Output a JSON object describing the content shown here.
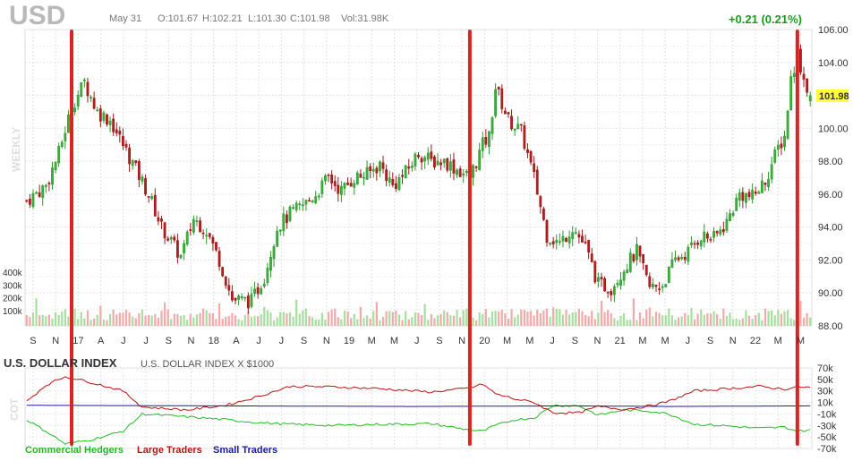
{
  "header": {
    "ticker": "USD",
    "date": "May 31",
    "open": "O:101.67",
    "high": "H:102.21",
    "low": "L:101.30",
    "close": "C:101.98",
    "volume": "Vol:31.98K",
    "change": "+0.21 (0.21%)",
    "last_price": "101.98"
  },
  "chart_data": [
    {
      "type": "candlestick",
      "side_label": "WEEKLY",
      "y_ticks": [
        "106.00",
        "104.00",
        "102.00",
        "100.00",
        "98.00",
        "96.00",
        "94.00",
        "92.00",
        "90.00",
        "88.00"
      ],
      "ylim": [
        88,
        106
      ],
      "x_ticks": [
        "S",
        "N",
        "17",
        "A",
        "J",
        "J",
        "S",
        "N",
        "18",
        "A",
        "J",
        "J",
        "S",
        "N",
        "19",
        "M",
        "M",
        "J",
        "S",
        "N",
        "20",
        "M",
        "M",
        "J",
        "S",
        "N",
        "21",
        "M",
        "M",
        "J",
        "S",
        "N",
        "22",
        "M",
        "M"
      ],
      "volume_ticks": [
        "400k",
        "300k",
        "200k",
        "100k"
      ],
      "anchors": [
        {
          "week": 0,
          "close": 95.6
        },
        {
          "week": 6,
          "close": 96.5
        },
        {
          "week": 10,
          "close": 98.5
        },
        {
          "week": 14,
          "close": 101.3
        },
        {
          "week": 18,
          "close": 102.8
        },
        {
          "week": 22,
          "close": 101.0
        },
        {
          "week": 26,
          "close": 100.5
        },
        {
          "week": 30,
          "close": 99.0
        },
        {
          "week": 34,
          "close": 97.5
        },
        {
          "week": 38,
          "close": 96.0
        },
        {
          "week": 42,
          "close": 94.0
        },
        {
          "week": 48,
          "close": 92.2
        },
        {
          "week": 52,
          "close": 94.5
        },
        {
          "week": 56,
          "close": 93.8
        },
        {
          "week": 60,
          "close": 92.0
        },
        {
          "week": 64,
          "close": 89.6
        },
        {
          "week": 70,
          "close": 89.5
        },
        {
          "week": 74,
          "close": 91.0
        },
        {
          "week": 78,
          "close": 94.0
        },
        {
          "week": 82,
          "close": 94.8
        },
        {
          "week": 86,
          "close": 95.3
        },
        {
          "week": 90,
          "close": 96.0
        },
        {
          "week": 94,
          "close": 97.0
        },
        {
          "week": 98,
          "close": 96.2
        },
        {
          "week": 102,
          "close": 97.0
        },
        {
          "week": 106,
          "close": 97.2
        },
        {
          "week": 110,
          "close": 97.8
        },
        {
          "week": 114,
          "close": 96.5
        },
        {
          "week": 118,
          "close": 97.3
        },
        {
          "week": 122,
          "close": 98.5
        },
        {
          "week": 126,
          "close": 98.0
        },
        {
          "week": 130,
          "close": 98.0
        },
        {
          "week": 134,
          "close": 97.5
        },
        {
          "week": 138,
          "close": 97.0
        },
        {
          "week": 142,
          "close": 99.0
        },
        {
          "week": 144,
          "close": 99.5
        },
        {
          "week": 146,
          "close": 102.5
        },
        {
          "week": 150,
          "close": 100.5
        },
        {
          "week": 154,
          "close": 99.8
        },
        {
          "week": 158,
          "close": 97.0
        },
        {
          "week": 162,
          "close": 93.5
        },
        {
          "week": 166,
          "close": 93.0
        },
        {
          "week": 170,
          "close": 94.0
        },
        {
          "week": 174,
          "close": 92.8
        },
        {
          "week": 178,
          "close": 90.5
        },
        {
          "week": 182,
          "close": 90.3
        },
        {
          "week": 186,
          "close": 91.5
        },
        {
          "week": 190,
          "close": 92.5
        },
        {
          "week": 194,
          "close": 90.3
        },
        {
          "week": 198,
          "close": 90.5
        },
        {
          "week": 202,
          "close": 92.0
        },
        {
          "week": 206,
          "close": 92.5
        },
        {
          "week": 210,
          "close": 93.5
        },
        {
          "week": 214,
          "close": 93.3
        },
        {
          "week": 218,
          "close": 94.3
        },
        {
          "week": 222,
          "close": 96.0
        },
        {
          "week": 226,
          "close": 95.8
        },
        {
          "week": 230,
          "close": 96.8
        },
        {
          "week": 234,
          "close": 98.8
        },
        {
          "week": 236,
          "close": 99.5
        },
        {
          "week": 238,
          "close": 103.0
        },
        {
          "week": 240,
          "close": 104.5
        },
        {
          "week": 242,
          "close": 103.0
        },
        {
          "week": 244,
          "close": 101.98
        }
      ]
    },
    {
      "type": "line",
      "title": "U.S. DOLLAR INDEX",
      "subtitle": "U.S. DOLLAR INDEX X $1000",
      "side_label": "COT",
      "y_ticks": [
        "70k",
        "50k",
        "30k",
        "10k",
        "-10k",
        "-30k",
        "-50k",
        "-70k"
      ],
      "ylim": [
        -70000,
        70000
      ],
      "series": [
        {
          "name": "Commercial Hedgers",
          "color": "#22bb22",
          "anchors": [
            {
              "w": 0,
              "v": -20000
            },
            {
              "w": 6,
              "v": -40000
            },
            {
              "w": 12,
              "v": -62000
            },
            {
              "w": 20,
              "v": -55000
            },
            {
              "w": 30,
              "v": -40000
            },
            {
              "w": 36,
              "v": -10000
            },
            {
              "w": 50,
              "v": -15000
            },
            {
              "w": 62,
              "v": -20000
            },
            {
              "w": 72,
              "v": -25000
            },
            {
              "w": 82,
              "v": -28000
            },
            {
              "w": 96,
              "v": -30000
            },
            {
              "w": 110,
              "v": -28000
            },
            {
              "w": 126,
              "v": -27000
            },
            {
              "w": 138,
              "v": -38000
            },
            {
              "w": 142,
              "v": -40000
            },
            {
              "w": 146,
              "v": -30000
            },
            {
              "w": 152,
              "v": -20000
            },
            {
              "w": 158,
              "v": -17000
            },
            {
              "w": 164,
              "v": 5000
            },
            {
              "w": 172,
              "v": 4000
            },
            {
              "w": 178,
              "v": -12000
            },
            {
              "w": 186,
              "v": -3000
            },
            {
              "w": 194,
              "v": -5000
            },
            {
              "w": 200,
              "v": -10000
            },
            {
              "w": 208,
              "v": -28000
            },
            {
              "w": 216,
              "v": -30000
            },
            {
              "w": 228,
              "v": -35000
            },
            {
              "w": 236,
              "v": -33000
            },
            {
              "w": 240,
              "v": -40000
            },
            {
              "w": 244,
              "v": -38000
            }
          ]
        },
        {
          "name": "Large Traders",
          "color": "#bb1111",
          "anchors": [
            {
              "w": 0,
              "v": 12000
            },
            {
              "w": 6,
              "v": 40000
            },
            {
              "w": 12,
              "v": 55000
            },
            {
              "w": 20,
              "v": 45000
            },
            {
              "w": 30,
              "v": 30000
            },
            {
              "w": 36,
              "v": 2000
            },
            {
              "w": 50,
              "v": -3000
            },
            {
              "w": 62,
              "v": 5000
            },
            {
              "w": 72,
              "v": 20000
            },
            {
              "w": 82,
              "v": 38000
            },
            {
              "w": 96,
              "v": 37000
            },
            {
              "w": 110,
              "v": 34000
            },
            {
              "w": 126,
              "v": 28000
            },
            {
              "w": 138,
              "v": 35000
            },
            {
              "w": 142,
              "v": 42000
            },
            {
              "w": 146,
              "v": 25000
            },
            {
              "w": 152,
              "v": 16000
            },
            {
              "w": 158,
              "v": 10000
            },
            {
              "w": 164,
              "v": -8000
            },
            {
              "w": 172,
              "v": -8000
            },
            {
              "w": 178,
              "v": 3000
            },
            {
              "w": 186,
              "v": -2000
            },
            {
              "w": 194,
              "v": 4000
            },
            {
              "w": 200,
              "v": 12000
            },
            {
              "w": 208,
              "v": 30000
            },
            {
              "w": 216,
              "v": 33000
            },
            {
              "w": 228,
              "v": 38000
            },
            {
              "w": 236,
              "v": 33000
            },
            {
              "w": 240,
              "v": 37000
            },
            {
              "w": 244,
              "v": 36000
            }
          ]
        },
        {
          "name": "Small Traders",
          "color": "#1a1aaa",
          "anchors": [
            {
              "w": 0,
              "v": 5000
            },
            {
              "w": 60,
              "v": 4000
            },
            {
              "w": 120,
              "v": 3000
            },
            {
              "w": 170,
              "v": 4000
            },
            {
              "w": 200,
              "v": 3000
            },
            {
              "w": 244,
              "v": 4000
            }
          ]
        }
      ]
    }
  ],
  "annotations": {
    "marker_color": "#dd2222",
    "vertical_marker_weeks": [
      14,
      138,
      240
    ]
  }
}
